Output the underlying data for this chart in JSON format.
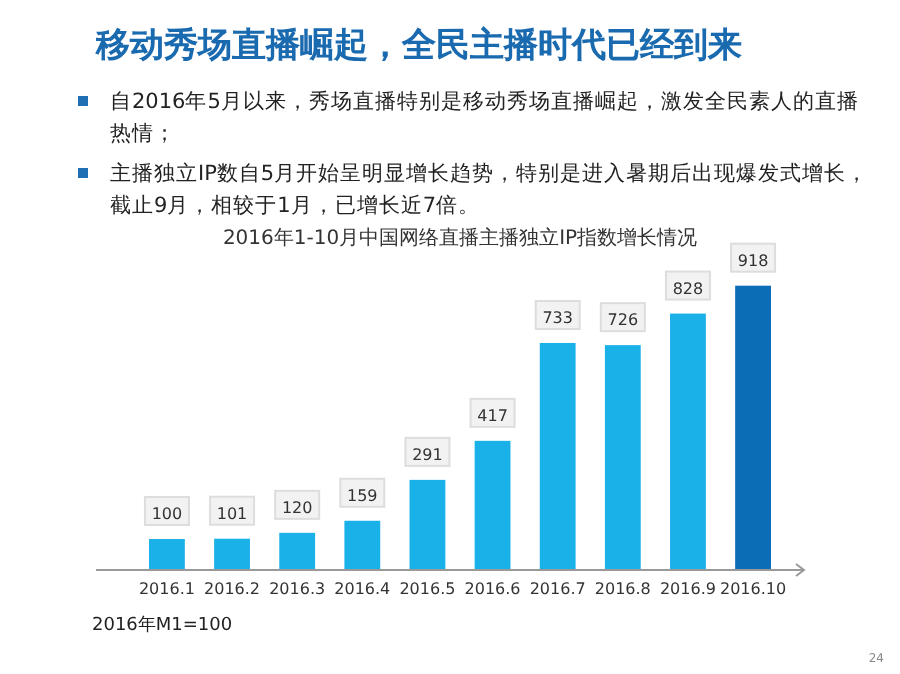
{
  "chart_data": {
    "type": "bar",
    "title": "移动秀场直播崛起，全民主播时代已经到来",
    "subtitle": "2016年1-10月中国网络直播主播独立IP指数增长情况",
    "annotations": [
      "自2016年5月以来，秀场直播特别是移动秀场直播崛起，激发全民素人的直播热情；",
      "主播独立IP数自5月开始呈明显增长趋势，特别是进入暑期后出现爆发式增长，截止9月，相较于1月，已增长近7倍。",
      "2016年M1=100",
      "24"
    ],
    "categories": [
      "2016.1",
      "2016.2",
      "2016.3",
      "2016.4",
      "2016.5",
      "2016.6",
      "2016.7",
      "2016.8",
      "2016.9",
      "2016.10"
    ],
    "values": [
      100,
      101,
      120,
      159,
      291,
      417,
      733,
      726,
      828,
      918
    ],
    "colors": [
      "#1ab0e8",
      "#1ab0e8",
      "#1ab0e8",
      "#1ab0e8",
      "#1ab0e8",
      "#1ab0e8",
      "#1ab0e8",
      "#1ab0e8",
      "#1ab0e8",
      "#0a6db5"
    ],
    "data_labels": true
  }
}
